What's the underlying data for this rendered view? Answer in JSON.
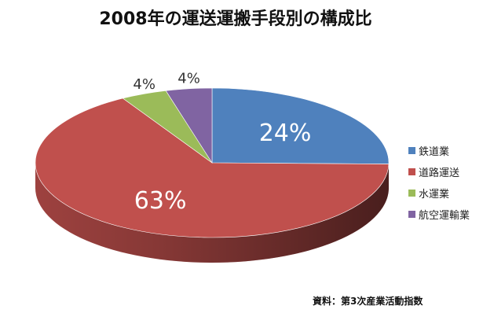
{
  "chart_data": {
    "type": "pie",
    "title": "2008年の運送運搬手段別の構成比",
    "categories": [
      "鉄道業",
      "道路運送",
      "水運業",
      "航空運輸業"
    ],
    "values": [
      24,
      63,
      4,
      4
    ],
    "value_labels": [
      "24%",
      "63%",
      "4%",
      "4%"
    ],
    "colors": [
      "#4F81BD",
      "#C0504D",
      "#9BBB59",
      "#8064A2"
    ],
    "style": "3d",
    "legend_position": "right"
  },
  "source_note": "資料：第3次産業活動指数"
}
